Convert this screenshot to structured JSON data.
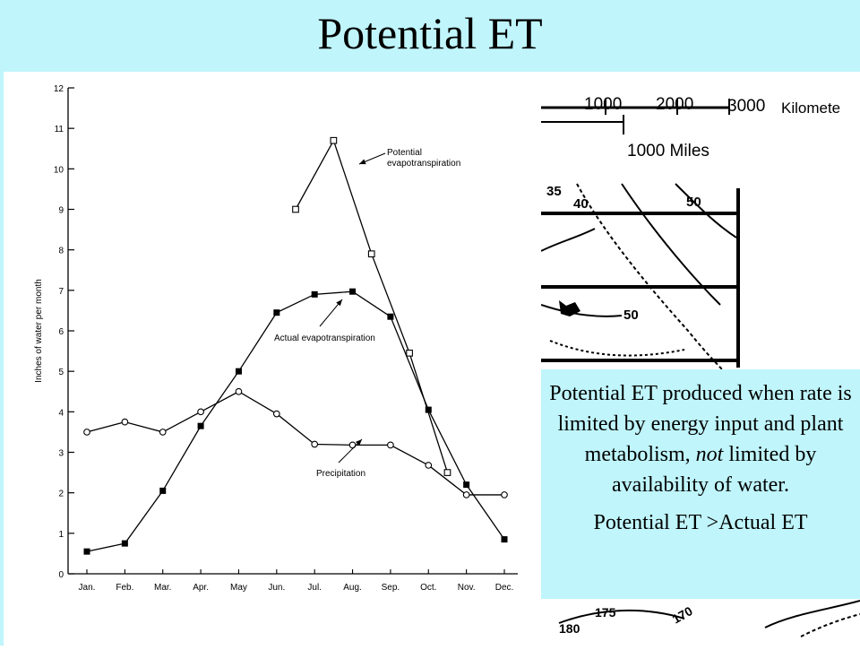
{
  "slide": {
    "title": "Potential ET",
    "callout_parts": [
      "Potential ET produced when rate is limited by energy input and plant metabolism, ",
      "not",
      " limited by availability of water."
    ],
    "callout_line2": "Potential ET >Actual ET"
  },
  "map_fragment": {
    "scale_km_labels": [
      "1000",
      "2000",
      "3000"
    ],
    "scale_km_unit": "Kilomete",
    "scale_miles_label": "1000 Miles",
    "contour_labels": [
      "35",
      "40",
      "50",
      "50",
      "175",
      "180",
      "170"
    ]
  },
  "colors": {
    "slide_bg": "#bff5fb",
    "ink": "#000000",
    "panel": "#ffffff"
  },
  "chart_data": {
    "type": "line",
    "ylabel": "Inches of water per month",
    "ylim": [
      0,
      12
    ],
    "yticks": [
      "0",
      "1",
      "2",
      "3",
      "4",
      "5",
      "6",
      "7",
      "8",
      "9",
      "10",
      "11",
      "12"
    ],
    "categories": [
      "Jan.",
      "Feb.",
      "Mar.",
      "Apr.",
      "May",
      "Jun.",
      "Jul.",
      "Aug.",
      "Sep.",
      "Oct.",
      "Nov.",
      "Dec."
    ],
    "grid": false,
    "series": [
      {
        "name": "Potential evapotranspiration",
        "marker": "open-square",
        "x": [
          6.5,
          7.5,
          8.5,
          9.5,
          10.5
        ],
        "values": [
          9.0,
          10.7,
          7.9,
          5.45,
          2.5
        ]
      },
      {
        "name": "Actual evapotranspiration",
        "marker": "filled-square",
        "x": [
          1,
          2,
          3,
          4,
          5,
          6,
          7,
          8,
          9,
          10,
          11,
          12
        ],
        "values": [
          0.55,
          0.75,
          2.05,
          3.65,
          5.0,
          6.45,
          6.9,
          6.97,
          6.35,
          4.05,
          2.2,
          0.85
        ]
      },
      {
        "name": "Precipitation",
        "marker": "open-circle",
        "x": [
          1,
          2,
          3,
          4,
          5,
          6,
          7,
          8,
          9,
          10,
          11,
          12
        ],
        "values": [
          3.5,
          3.75,
          3.5,
          4.0,
          4.5,
          3.95,
          3.2,
          3.18,
          3.18,
          2.68,
          1.95,
          1.95
        ]
      }
    ],
    "annotations": [
      {
        "lines": [
          "Potential",
          "evapotranspiration"
        ],
        "series": "Potential evapotranspiration"
      },
      {
        "lines": [
          "Actual evapotranspiration"
        ],
        "series": "Actual evapotranspiration"
      },
      {
        "lines": [
          "Precipitation"
        ],
        "series": "Precipitation"
      }
    ]
  }
}
